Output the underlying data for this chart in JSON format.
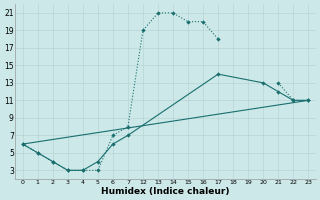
{
  "xlabel": "Humidex (Indice chaleur)",
  "bg_color": "#cce8e8",
  "line_color": "#1a6e6e",
  "x_ticks": [
    0,
    1,
    2,
    3,
    4,
    5,
    6,
    7,
    12,
    13,
    14,
    15,
    16,
    17,
    18,
    19,
    20,
    21,
    22,
    23
  ],
  "x_tick_positions": [
    0,
    1,
    2,
    3,
    4,
    5,
    6,
    7,
    8,
    9,
    10,
    11,
    12,
    13,
    14,
    15,
    16,
    17,
    18,
    19
  ],
  "ylim": [
    2,
    22
  ],
  "xlim": [
    -0.5,
    19.5
  ],
  "yticks": [
    3,
    5,
    7,
    9,
    11,
    13,
    15,
    17,
    19,
    21
  ],
  "series": [
    {
      "xpos": [
        0,
        1,
        2,
        3,
        4,
        5,
        6,
        7,
        8,
        9,
        10,
        11,
        12,
        13,
        14,
        15,
        16,
        17,
        18,
        19
      ],
      "y": [
        6,
        5,
        4,
        3,
        3,
        3,
        7,
        8,
        19,
        21,
        21,
        20,
        20,
        18,
        null,
        null,
        null,
        13,
        11,
        11
      ],
      "style": "dotted",
      "has_markers": true
    },
    {
      "xpos": [
        0,
        1,
        2,
        3,
        4,
        5,
        6,
        7,
        13,
        16,
        17,
        18,
        19
      ],
      "y": [
        6,
        5,
        4,
        3,
        3,
        4,
        6,
        7,
        14,
        13,
        12,
        11,
        11
      ],
      "style": "solid",
      "has_markers": true
    },
    {
      "xpos": [
        0,
        19
      ],
      "y": [
        6,
        11
      ],
      "style": "solid",
      "has_markers": false
    }
  ]
}
